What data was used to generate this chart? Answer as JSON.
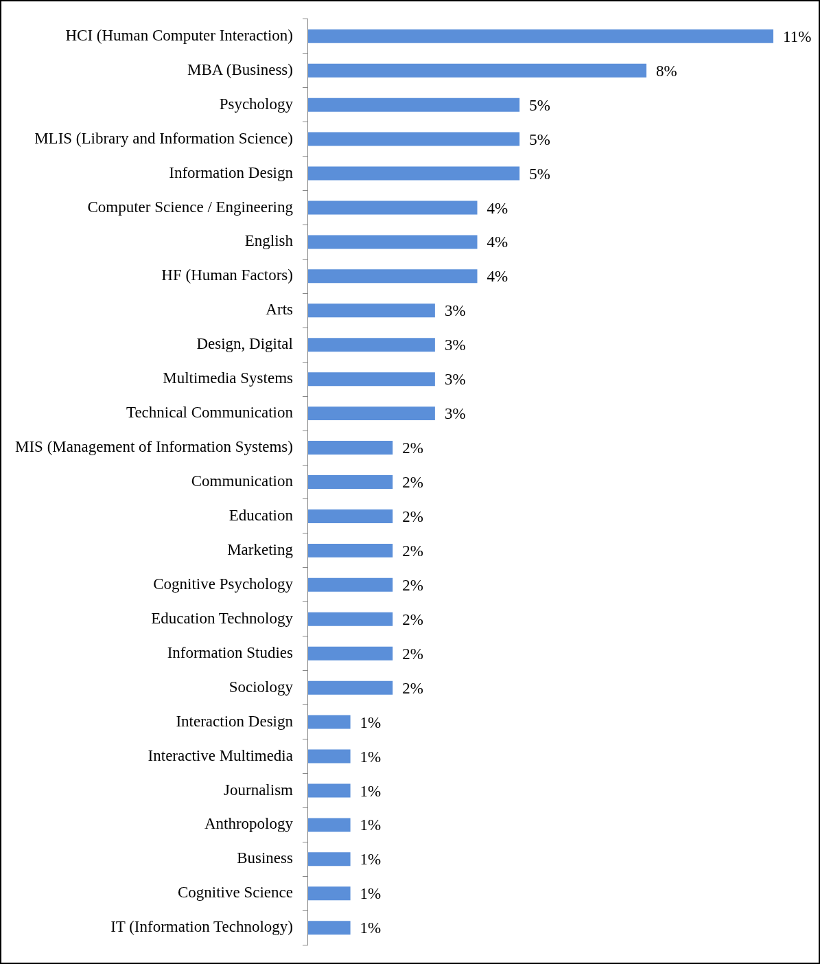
{
  "chart_data": {
    "type": "bar",
    "orientation": "horizontal",
    "categories": [
      "HCI (Human Computer Interaction)",
      "MBA (Business)",
      "Psychology",
      "MLIS (Library and Information Science)",
      "Information Design",
      "Computer Science / Engineering",
      "English",
      "HF (Human Factors)",
      "Arts",
      "Design, Digital",
      "Multimedia Systems",
      "Technical Communication",
      "MIS (Management of Information Systems)",
      "Communication",
      "Education",
      "Marketing",
      "Cognitive Psychology",
      "Education Technology",
      "Information Studies",
      "Sociology",
      "Interaction Design",
      "Interactive Multimedia",
      "Journalism",
      "Anthropology",
      "Business",
      "Cognitive Science",
      "IT (Information Technology)"
    ],
    "values": [
      11,
      8,
      5,
      5,
      5,
      4,
      4,
      4,
      3,
      3,
      3,
      3,
      2,
      2,
      2,
      2,
      2,
      2,
      2,
      2,
      1,
      1,
      1,
      1,
      1,
      1,
      1
    ],
    "value_labels": [
      "11%",
      "8%",
      "5%",
      "5%",
      "5%",
      "4%",
      "4%",
      "4%",
      "3%",
      "3%",
      "3%",
      "3%",
      "2%",
      "2%",
      "2%",
      "2%",
      "2%",
      "2%",
      "2%",
      "2%",
      "1%",
      "1%",
      "1%",
      "1%",
      "1%",
      "1%",
      "1%"
    ],
    "color": "#5b8fd9",
    "grid": false,
    "legend": false,
    "tick_labels": "y"
  }
}
